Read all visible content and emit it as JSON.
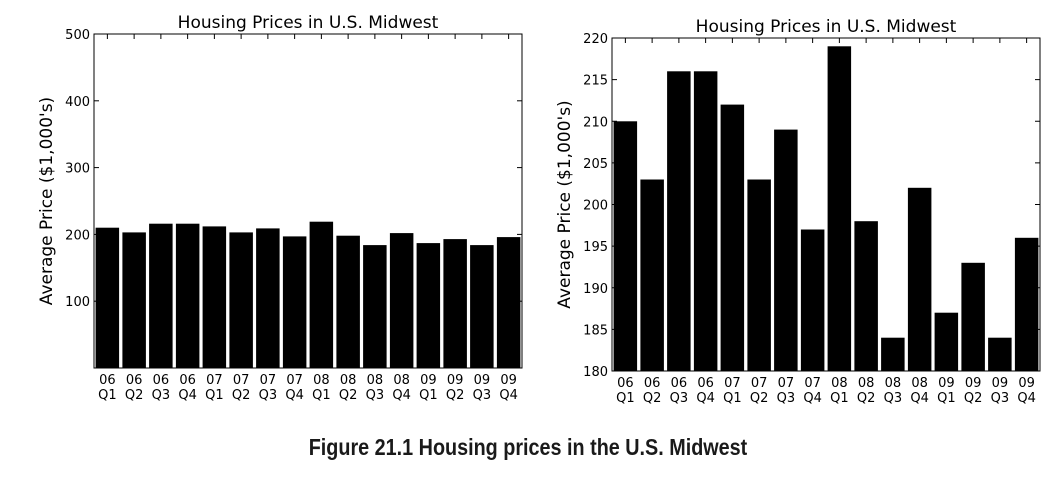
{
  "figure_caption": "Figure 21.1 Housing prices in the U.S. Midwest",
  "chart_data": [
    {
      "type": "bar",
      "title": "Housing Prices in U.S. Midwest",
      "ylabel": "Average Price ($1,000's)",
      "xlabel": "",
      "categories": [
        "06\nQ1",
        "06\nQ2",
        "06\nQ3",
        "06\nQ4",
        "07\nQ1",
        "07\nQ2",
        "07\nQ3",
        "07\nQ4",
        "08\nQ1",
        "08\nQ2",
        "08\nQ3",
        "08\nQ4",
        "09\nQ1",
        "09\nQ2",
        "09\nQ3",
        "09\nQ4"
      ],
      "values": [
        210,
        203,
        216,
        216,
        212,
        203,
        209,
        197,
        219,
        198,
        184,
        202,
        187,
        193,
        184,
        196
      ],
      "ylim": [
        0,
        500
      ],
      "yticks": [
        100,
        200,
        300,
        400,
        500
      ],
      "bar_color": "#000000",
      "grid": false
    },
    {
      "type": "bar",
      "title": "Housing Prices in U.S. Midwest",
      "ylabel": "Average Price ($1,000's)",
      "xlabel": "",
      "categories": [
        "06\nQ1",
        "06\nQ2",
        "06\nQ3",
        "06\nQ4",
        "07\nQ1",
        "07\nQ2",
        "07\nQ3",
        "07\nQ4",
        "08\nQ1",
        "08\nQ2",
        "08\nQ3",
        "08\nQ4",
        "09\nQ1",
        "09\nQ2",
        "09\nQ3",
        "09\nQ4"
      ],
      "values": [
        210,
        203,
        216,
        216,
        212,
        203,
        209,
        197,
        219,
        198,
        184,
        202,
        187,
        193,
        184,
        196
      ],
      "ylim": [
        180,
        220
      ],
      "yticks": [
        180,
        185,
        190,
        195,
        200,
        205,
        210,
        215,
        220
      ],
      "bar_color": "#000000",
      "grid": false
    }
  ]
}
